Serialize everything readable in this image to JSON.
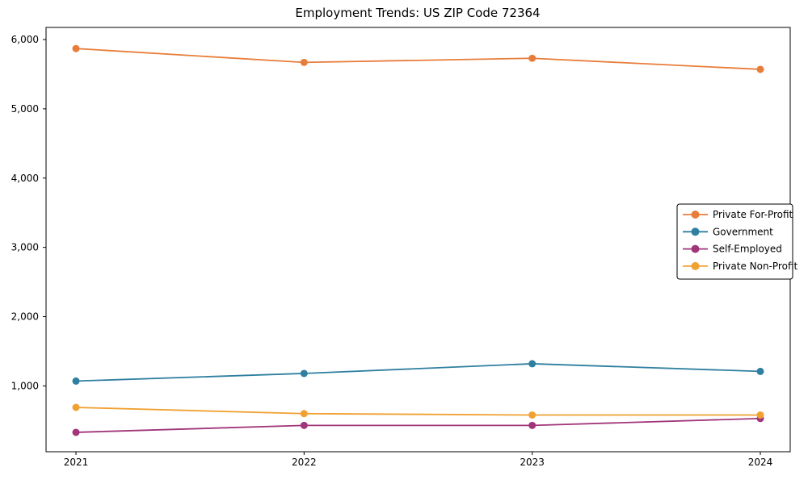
{
  "figure": {
    "background": "#ffffff",
    "text_color": "#000000",
    "spine_color": "#000000"
  },
  "chart_data": {
    "type": "line",
    "title": "Employment Trends: US ZIP Code 72364",
    "categories": [
      "2021",
      "2022",
      "2023",
      "2024"
    ],
    "series": [
      {
        "name": "Private For-Profit",
        "color": "#e87d3b",
        "values": [
          5870,
          5670,
          5730,
          5570
        ]
      },
      {
        "name": "Government",
        "color": "#2e7fa0",
        "values": [
          1070,
          1180,
          1320,
          1210
        ]
      },
      {
        "name": "Self-Employed",
        "color": "#a1357a",
        "values": [
          330,
          430,
          430,
          530
        ]
      },
      {
        "name": "Private Non-Profit",
        "color": "#f0a132",
        "values": [
          690,
          600,
          580,
          580
        ]
      }
    ],
    "xlabel": "",
    "ylabel": "",
    "ylim": [
      50,
      6175
    ],
    "yticks": [
      1000,
      2000,
      3000,
      4000,
      5000,
      6000
    ],
    "ytick_labels": [
      "1,000",
      "2,000",
      "3,000",
      "4,000",
      "5,000",
      "6,000"
    ],
    "grid": false,
    "legend_position": "center-right",
    "marker": "circle"
  }
}
